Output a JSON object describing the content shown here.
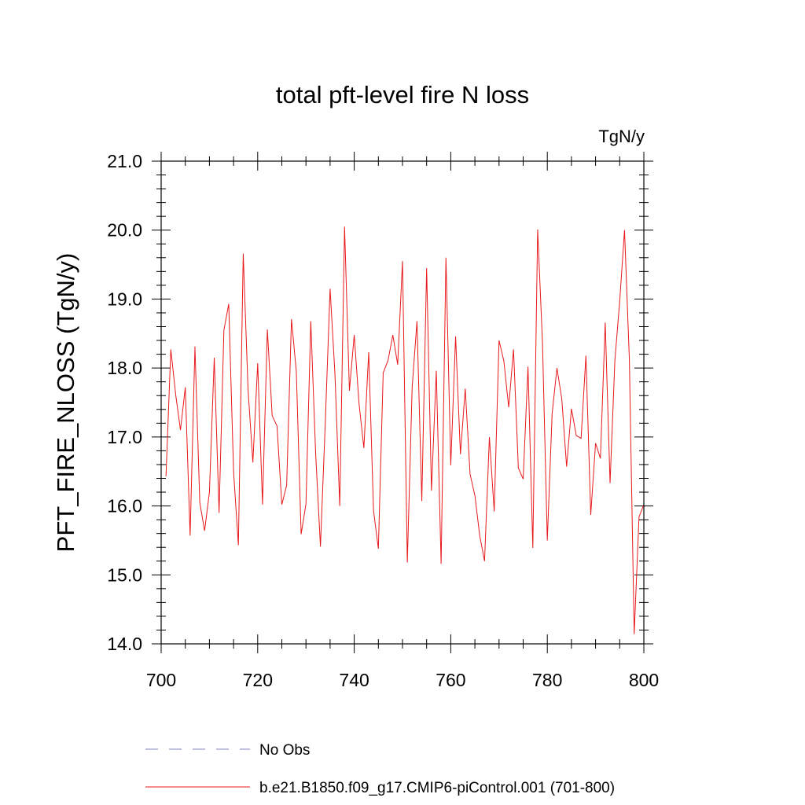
{
  "chart_data": {
    "type": "line",
    "title": "total pft-level fire N loss",
    "units_label": "TgN/y",
    "xlabel": "",
    "ylabel": "PFT_FIRE_NLOSS  (TgN/y)",
    "xlim": [
      700,
      800
    ],
    "ylim": [
      14.0,
      21.0
    ],
    "xticks": [
      700,
      720,
      740,
      760,
      780,
      800
    ],
    "xtick_labels": [
      "700",
      "720",
      "740",
      "760",
      "780",
      "800"
    ],
    "yticks": [
      14.0,
      15.0,
      16.0,
      17.0,
      18.0,
      19.0,
      20.0,
      21.0
    ],
    "ytick_labels": [
      "14.0",
      "15.0",
      "16.0",
      "17.0",
      "18.0",
      "19.0",
      "20.0",
      "21.0"
    ],
    "series": [
      {
        "name": "b.e21.B1850.f09_g17.CMIP6-piControl.001 (701-800)",
        "color": "#e8191c",
        "x": [
          701,
          702,
          703,
          704,
          705,
          706,
          707,
          708,
          709,
          710,
          711,
          712,
          713,
          714,
          715,
          716,
          717,
          718,
          719,
          720,
          721,
          722,
          723,
          724,
          725,
          726,
          727,
          728,
          729,
          730,
          731,
          732,
          733,
          734,
          735,
          736,
          737,
          738,
          739,
          740,
          741,
          742,
          743,
          744,
          745,
          746,
          747,
          748,
          749,
          750,
          751,
          752,
          753,
          754,
          755,
          756,
          757,
          758,
          759,
          760,
          761,
          762,
          763,
          764,
          765,
          766,
          767,
          768,
          769,
          770,
          771,
          772,
          773,
          774,
          775,
          776,
          777,
          778,
          779,
          780,
          781,
          782,
          783,
          784,
          785,
          786,
          787,
          788,
          789,
          790,
          791,
          792,
          793,
          794,
          795,
          796,
          797,
          798,
          799,
          800
        ],
        "values": [
          16.43,
          18.27,
          17.62,
          17.1,
          17.72,
          15.57,
          18.31,
          16.05,
          15.64,
          16.2,
          18.15,
          15.9,
          18.55,
          18.93,
          16.5,
          15.43,
          19.66,
          17.69,
          16.63,
          18.07,
          16.02,
          18.56,
          17.31,
          17.16,
          16.02,
          16.3,
          18.71,
          17.95,
          15.59,
          16.03,
          18.68,
          16.77,
          15.41,
          17.2,
          19.15,
          17.92,
          16.0,
          20.05,
          17.67,
          18.48,
          17.48,
          16.84,
          18.23,
          15.93,
          15.38,
          17.93,
          18.11,
          18.48,
          18.05,
          19.55,
          15.18,
          17.72,
          18.68,
          16.07,
          19.45,
          16.22,
          17.96,
          15.16,
          19.6,
          16.59,
          18.46,
          16.75,
          17.7,
          16.46,
          16.15,
          15.57,
          15.2,
          17.0,
          15.92,
          18.4,
          18.1,
          17.43,
          18.27,
          16.55,
          16.39,
          18.02,
          15.39,
          20.01,
          18.37,
          15.5,
          17.34,
          18.0,
          17.55,
          16.57,
          17.41,
          17.02,
          16.98,
          18.18,
          15.87,
          16.91,
          16.69,
          18.66,
          16.33,
          18.11,
          18.97,
          20.0,
          18.12,
          14.14,
          15.84,
          16.02
        ]
      },
      {
        "name": "No Obs",
        "color": "#8080c0",
        "dashed": true,
        "values": []
      }
    ],
    "legend_position": "bottom"
  }
}
